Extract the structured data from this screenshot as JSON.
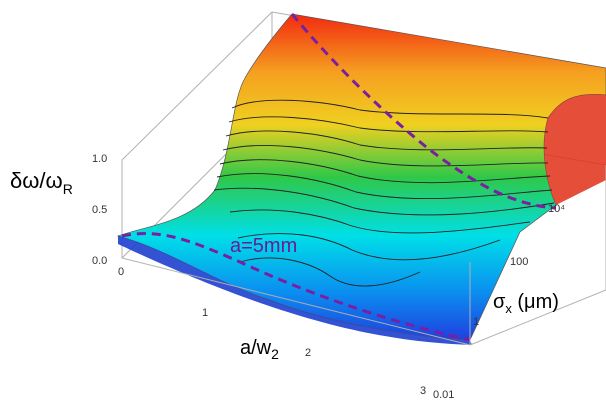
{
  "chart_data": {
    "type": "surface3d",
    "axes": {
      "x": {
        "label_main": "a/w",
        "label_sub": "2",
        "range": [
          0,
          3
        ],
        "ticks": [
          "0",
          "1",
          "2",
          "3"
        ]
      },
      "y": {
        "label_main": "σ",
        "label_sub": "x",
        "label_unit": " (μm)",
        "scale": "log",
        "range": [
          0.01,
          100000
        ],
        "ticks": [
          "0.01",
          "1",
          "100",
          "10⁴"
        ]
      },
      "z": {
        "label_main": "δω/ω",
        "label_sub": "R",
        "range": [
          0,
          1
        ],
        "ticks": [
          "0.0",
          "0.5",
          "1.0"
        ]
      }
    },
    "surface_corners": [
      {
        "x": 0,
        "sigma_um": 0.01,
        "z": 0.12
      },
      {
        "x": 0,
        "sigma_um": 100000,
        "z": 1.0
      },
      {
        "x": 3,
        "sigma_um": 100000,
        "z": 0.98
      },
      {
        "x": 3,
        "sigma_um": 0.01,
        "z": 0.0
      }
    ],
    "annotation": "a=5mm",
    "colormap": [
      "#1f4de8",
      "#00dfe8",
      "#2fc848",
      "#f0d020",
      "#f22a10"
    ],
    "curve_color": "#7a1fa2"
  }
}
